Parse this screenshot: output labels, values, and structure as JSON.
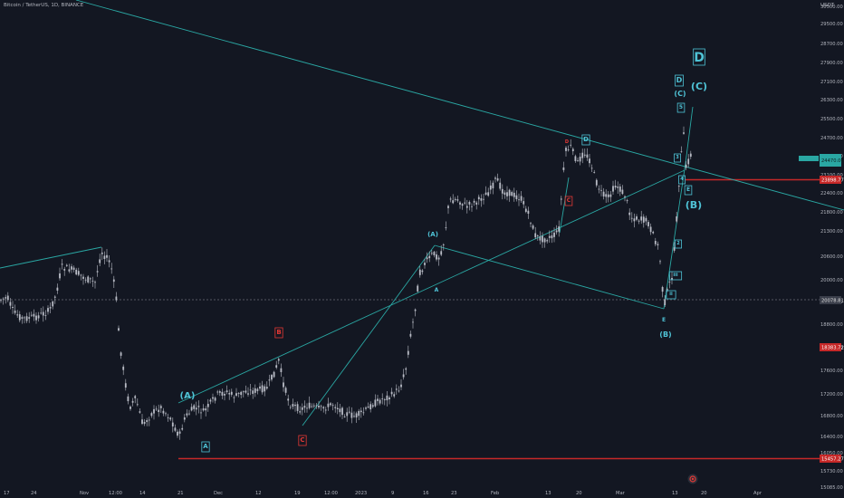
{
  "header": {
    "symbol": "Bitcoin / TetherUS, 1D, BINANCE",
    "currency": "USDT"
  },
  "colors": {
    "background": "#131722",
    "candle": "#b9bcc6",
    "trendline": "#2aa7a3",
    "wave_label": "#4fc3d6",
    "red_label": "#e53935",
    "level_line": "#c62828",
    "axis_text": "#b2b5be"
  },
  "price_axis": {
    "ticks": [
      "30500.00",
      "29500.00",
      "28700.00",
      "27900.00",
      "27100.00",
      "26300.00",
      "25500.00",
      "24700.00",
      "23900.00",
      "23100.00",
      "22400.00",
      "21800.00",
      "21300.00",
      "20600.00",
      "20000.00",
      "19200.00",
      "18800.00",
      "18000.00",
      "17600.00",
      "17200.00",
      "16800.00",
      "16400.00",
      "16050.00",
      "15730.00",
      "15085.00"
    ],
    "current_price_badge": "24470.00",
    "level_badges": [
      "23898.77",
      "18383.72",
      "15457.27"
    ],
    "dashed_level_badge": "20078.81"
  },
  "time_axis": {
    "labels": [
      "17",
      "24",
      "Nov",
      "12:00",
      "14",
      "21",
      "Dec",
      "12",
      "19",
      "12:00",
      "2023",
      "9",
      "16",
      "23",
      "Feb",
      "13",
      "20",
      "Mar",
      "13",
      "20",
      "Apr"
    ]
  },
  "chart_data": {
    "type": "candlestick",
    "symbol": "BTCUSDT",
    "timeframe": "1D",
    "exchange": "BINANCE",
    "series": [
      {
        "name": "BTCUSDT",
        "values": [
          {
            "date": "2022-10-12",
            "close": 19150
          },
          {
            "date": "2022-10-19",
            "close": 19120
          },
          {
            "date": "2022-10-26",
            "close": 20780
          },
          {
            "date": "2022-11-02",
            "close": 20150
          },
          {
            "date": "2022-11-05",
            "close": 21300
          },
          {
            "date": "2022-11-08",
            "close": 18550
          },
          {
            "date": "2022-11-09",
            "close": 15880
          },
          {
            "date": "2022-11-14",
            "close": 16600
          },
          {
            "date": "2022-11-21",
            "close": 15760
          },
          {
            "date": "2022-11-28",
            "close": 16200
          },
          {
            "date": "2022-12-05",
            "close": 17000
          },
          {
            "date": "2022-12-13",
            "close": 17780
          },
          {
            "date": "2022-12-19",
            "close": 16500
          },
          {
            "date": "2022-12-26",
            "close": 16700
          },
          {
            "date": "2023-01-02",
            "close": 16680
          },
          {
            "date": "2023-01-09",
            "close": 17200
          },
          {
            "date": "2023-01-14",
            "close": 20800
          },
          {
            "date": "2023-01-18",
            "close": 21100
          },
          {
            "date": "2023-01-21",
            "close": 22900
          },
          {
            "date": "2023-01-28",
            "close": 23300
          },
          {
            "date": "2023-02-04",
            "close": 23300
          },
          {
            "date": "2023-02-09",
            "close": 21800
          },
          {
            "date": "2023-02-16",
            "close": 24400
          },
          {
            "date": "2023-02-20",
            "close": 24800
          },
          {
            "date": "2023-03-01",
            "close": 23600
          },
          {
            "date": "2023-03-03",
            "close": 22400
          },
          {
            "date": "2023-03-09",
            "close": 20300
          },
          {
            "date": "2023-03-10",
            "close": 20100
          },
          {
            "date": "2023-03-13",
            "close": 22000
          },
          {
            "date": "2023-03-14",
            "close": 24200
          },
          {
            "date": "2023-03-17",
            "close": 26800
          },
          {
            "date": "2023-03-18",
            "close": 24500
          }
        ]
      }
    ],
    "ylim": [
      14900,
      30900
    ],
    "annotations": {
      "wave_labels": [
        "(A)",
        "A",
        "(A)",
        "B",
        "C",
        "A",
        "D",
        "D",
        "C",
        "E",
        "(B)",
        "D",
        "(C)",
        "5",
        "3",
        "4",
        "2",
        "iii",
        "ii",
        "E",
        "(B)",
        "(C)",
        "D"
      ],
      "horizontal_levels": [
        23898.77,
        15457.27
      ],
      "dashed_level": 20078.81
    }
  }
}
